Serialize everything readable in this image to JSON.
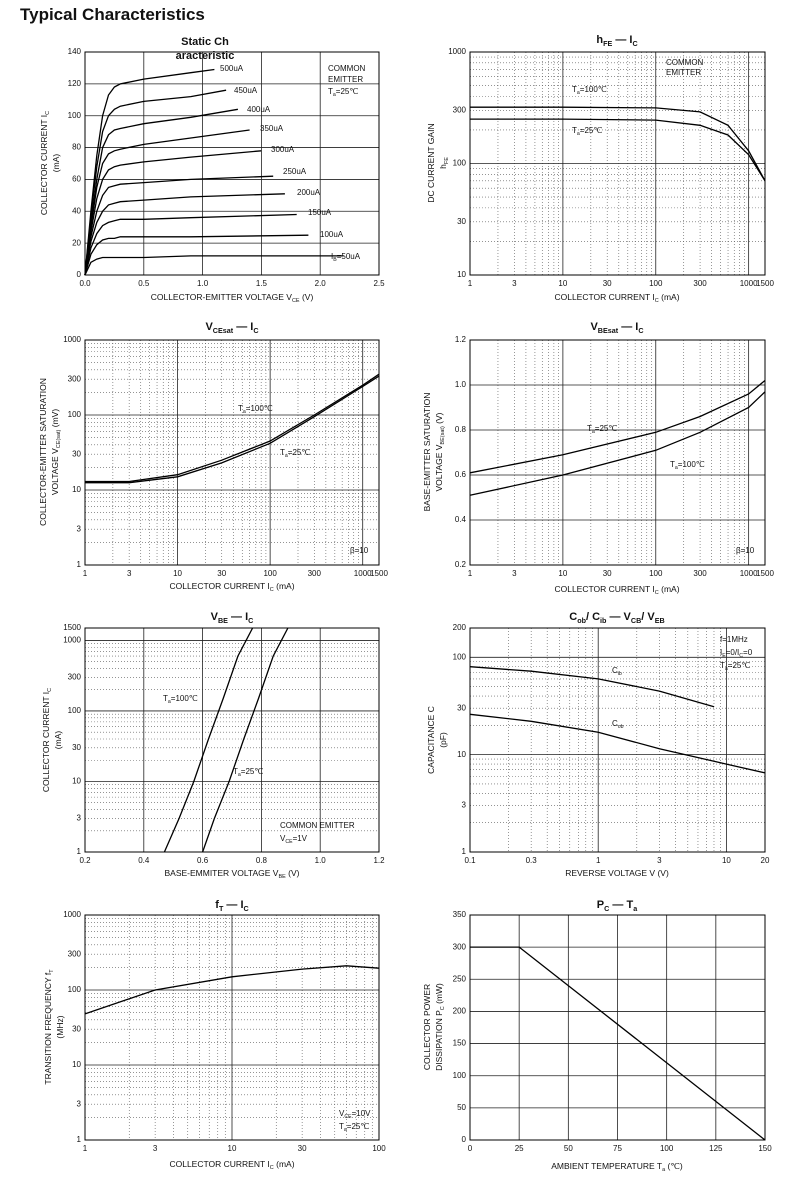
{
  "page_title": "Typical Characteristics",
  "chart_data": [
    {
      "type": "line",
      "title_lines": [
        "Static Ch",
        "aracteristic"
      ],
      "x_label": [
        "COLLECTOR-EMITTER VOLTAGE   V",
        "CE",
        "   (V)"
      ],
      "y_label": [
        [
          "COLLECTOR CURRENT   I",
          "C"
        ],
        [
          "(mA)"
        ]
      ],
      "xlim": [
        0,
        2.5
      ],
      "xticks": [
        {
          "value": 0,
          "label": "0.0"
        },
        0.5,
        {
          "value": 1,
          "label": "1.0"
        },
        1.5,
        {
          "value": 2,
          "label": "2.0"
        },
        2.5
      ],
      "ylim": [
        0,
        140
      ],
      "yticks": [
        0,
        20,
        40,
        60,
        80,
        100,
        120,
        140
      ],
      "grid": true,
      "annotations": [
        [
          "COMMON"
        ],
        [
          "EMITTER"
        ],
        [
          "T",
          "a",
          "=25℃"
        ]
      ],
      "series": [
        {
          "name": [
            "500uA"
          ],
          "color": "#000000",
          "x": [
            0,
            0.05,
            0.1,
            0.15,
            0.2,
            0.25,
            0.3,
            0.5,
            0.9,
            1.1
          ],
          "values": [
            0,
            40,
            75,
            100,
            113,
            118,
            120,
            123,
            127,
            129
          ]
        },
        {
          "name": [
            "450uA"
          ],
          "color": "#000000",
          "x": [
            0,
            0.05,
            0.1,
            0.15,
            0.2,
            0.25,
            0.3,
            0.5,
            0.9,
            1.2
          ],
          "values": [
            0,
            37,
            68,
            90,
            100,
            104,
            106,
            109,
            112,
            116
          ]
        },
        {
          "name": [
            "400uA"
          ],
          "color": "#000000",
          "x": [
            0,
            0.05,
            0.1,
            0.15,
            0.2,
            0.25,
            0.3,
            0.5,
            0.9,
            1.3
          ],
          "values": [
            0,
            33,
            60,
            80,
            88,
            91,
            92,
            95,
            99,
            104
          ]
        },
        {
          "name": [
            "350uA"
          ],
          "color": "#000000",
          "x": [
            0,
            0.05,
            0.1,
            0.15,
            0.2,
            0.25,
            0.3,
            0.5,
            0.9,
            1.4
          ],
          "values": [
            0,
            30,
            55,
            70,
            76,
            78,
            79,
            82,
            86,
            91
          ]
        },
        {
          "name": [
            "300uA"
          ],
          "color": "#000000",
          "x": [
            0,
            0.05,
            0.1,
            0.15,
            0.2,
            0.25,
            0.3,
            0.5,
            0.9,
            1.5
          ],
          "values": [
            0,
            27,
            48,
            60,
            66,
            68,
            69,
            71,
            74,
            78
          ]
        },
        {
          "name": [
            "250uA"
          ],
          "color": "#000000",
          "x": [
            0,
            0.05,
            0.1,
            0.15,
            0.2,
            0.25,
            0.3,
            0.5,
            0.9,
            1.6
          ],
          "values": [
            0,
            24,
            40,
            50,
            55,
            56,
            57,
            58,
            60,
            62
          ]
        },
        {
          "name": [
            "200uA"
          ],
          "color": "#000000",
          "x": [
            0,
            0.05,
            0.1,
            0.15,
            0.2,
            0.25,
            0.3,
            0.5,
            0.9,
            1.7
          ],
          "values": [
            0,
            21,
            33,
            40,
            44,
            45,
            46,
            47,
            49,
            51
          ]
        },
        {
          "name": [
            "150uA"
          ],
          "color": "#000000",
          "x": [
            0,
            0.05,
            0.1,
            0.15,
            0.2,
            0.25,
            0.3,
            0.5,
            0.9,
            1.8
          ],
          "values": [
            0,
            17,
            26,
            31,
            33,
            34,
            35,
            35,
            36,
            38
          ]
        },
        {
          "name": [
            "100uA"
          ],
          "color": "#000000",
          "x": [
            0,
            0.05,
            0.1,
            0.15,
            0.2,
            0.25,
            0.3,
            0.5,
            0.9,
            1.9
          ],
          "values": [
            0,
            13,
            19,
            22,
            23,
            23,
            24,
            24,
            24,
            25
          ]
        },
        {
          "name": [
            "I",
            "B",
            "=50uA"
          ],
          "color": "#000000",
          "x": [
            0,
            0.05,
            0.1,
            0.15,
            0.2,
            0.25,
            0.3,
            0.5,
            0.9,
            2.2
          ],
          "values": [
            0,
            8,
            10,
            11,
            11,
            11,
            11,
            11,
            12,
            12
          ]
        }
      ]
    },
    {
      "type": "line",
      "title": [
        "h",
        "FE",
        "  —  I",
        "C"
      ],
      "x_label": [
        "COLLECTOR CURRENT   I",
        "C",
        "   (mA)"
      ],
      "y_label": [
        [
          "DC CURRENT GAIN"
        ],
        [
          "h",
          "FE"
        ]
      ],
      "xscale": "log",
      "yscale": "log",
      "xlim": [
        1,
        1500
      ],
      "xticks": [
        1,
        3,
        10,
        30,
        100,
        300,
        1000,
        1500
      ],
      "ylim": [
        10,
        1000
      ],
      "yticks": [
        10,
        30,
        100,
        300,
        1000
      ],
      "grid": true,
      "annotations": [
        [
          "COMMON"
        ],
        [
          "EMITTER"
        ]
      ],
      "series": [
        {
          "name": [
            "T",
            "a",
            "=100℃"
          ],
          "color": "#000000",
          "x": [
            1,
            10,
            100,
            300,
            600,
            1000,
            1500
          ],
          "values": [
            320,
            320,
            315,
            290,
            220,
            130,
            70
          ]
        },
        {
          "name": [
            "T",
            "a",
            "=25℃"
          ],
          "color": "#000000",
          "x": [
            1,
            10,
            100,
            300,
            600,
            1000,
            1500
          ],
          "values": [
            250,
            250,
            245,
            220,
            180,
            120,
            70
          ]
        }
      ]
    },
    {
      "type": "line",
      "title": [
        "V",
        "CEsat",
        "  —  I",
        "C"
      ],
      "x_label": [
        "COLLECTOR CURRENT   I",
        "C",
        "   (mA)"
      ],
      "y_label": [
        [
          "COLLECTOR-EMITTER SATURATION"
        ],
        [
          "VOLTAGE   V",
          "CE(sat)",
          "   (mV)"
        ]
      ],
      "xscale": "log",
      "yscale": "log",
      "xlim": [
        1,
        1500
      ],
      "xticks": [
        1,
        3,
        10,
        30,
        100,
        300,
        1000,
        1500
      ],
      "ylim": [
        1,
        1000
      ],
      "yticks": [
        1,
        3,
        10,
        30,
        100,
        300,
        1000
      ],
      "grid": true,
      "annotations": [
        [
          "β=10"
        ]
      ],
      "series": [
        {
          "name": [
            "T",
            "a",
            "=100℃"
          ],
          "color": "#000000",
          "x": [
            1,
            3,
            10,
            30,
            100,
            300,
            1000,
            1500
          ],
          "values": [
            13,
            13,
            16,
            25,
            45,
            100,
            250,
            350
          ]
        },
        {
          "name": [
            "T",
            "a",
            "=25℃"
          ],
          "color": "#000000",
          "x": [
            1,
            3,
            10,
            30,
            100,
            300,
            1000,
            1500
          ],
          "values": [
            12.5,
            12.5,
            15,
            23,
            42,
            95,
            240,
            330
          ]
        }
      ]
    },
    {
      "type": "line",
      "title": [
        "V",
        "BEsat",
        "  —  I",
        "C"
      ],
      "x_label": [
        "COLLECTOR CURRENT   I",
        "C",
        "   (mA)"
      ],
      "y_label": [
        [
          "BASE-EMITTER SATURATION"
        ],
        [
          "VOLTAGE   V",
          "BE(sat)",
          "   (V)"
        ]
      ],
      "xscale": "log",
      "xlim": [
        1,
        1500
      ],
      "xticks": [
        1,
        3,
        10,
        30,
        100,
        300,
        1000,
        1500
      ],
      "ylim": [
        0.2,
        1.2
      ],
      "yticks": [
        0.2,
        0.4,
        0.6,
        0.8,
        {
          "value": 1,
          "label": "1.0"
        },
        1.2
      ],
      "grid": true,
      "annotations": [
        [
          "β=10"
        ]
      ],
      "series": [
        {
          "name": [
            "T",
            "a",
            "=25℃"
          ],
          "color": "#000000",
          "x": [
            1,
            10,
            100,
            300,
            1000,
            1500
          ],
          "values": [
            0.61,
            0.69,
            0.79,
            0.86,
            0.96,
            1.02
          ]
        },
        {
          "name": [
            "T",
            "a",
            "=100℃"
          ],
          "color": "#000000",
          "x": [
            1,
            10,
            100,
            300,
            1000,
            1500
          ],
          "values": [
            0.51,
            0.6,
            0.71,
            0.79,
            0.9,
            0.97
          ]
        }
      ]
    },
    {
      "type": "line",
      "title": [
        "V",
        "BE",
        "  —  I",
        "C"
      ],
      "x_label": [
        "BASE-EMMITER VOLTAGE   V",
        "BE",
        "   (V)"
      ],
      "y_label": [
        [
          "COLLECTOR CURRENT   I",
          "C"
        ],
        [
          "(mA)"
        ]
      ],
      "yscale": "log",
      "xlim": [
        0.2,
        1.2
      ],
      "xticks": [
        0.2,
        0.4,
        0.6,
        0.8,
        {
          "value": 1,
          "label": "1.0"
        },
        1.2
      ],
      "ylim": [
        1,
        1500
      ],
      "yticks": [
        1,
        3,
        10,
        30,
        100,
        300,
        1000,
        1500
      ],
      "grid": true,
      "annotations": [
        [
          "COMMON EMITTER"
        ],
        [
          "V",
          "CE",
          "=1V"
        ]
      ],
      "series": [
        {
          "name": [
            "T",
            "a",
            "=100℃"
          ],
          "color": "#000000",
          "x": [
            0.47,
            0.52,
            0.57,
            0.62,
            0.67,
            0.72,
            0.77
          ],
          "values": [
            1,
            3,
            10,
            40,
            150,
            600,
            1500
          ]
        },
        {
          "name": [
            "T",
            "a",
            "=25℃"
          ],
          "color": "#000000",
          "x": [
            0.6,
            0.64,
            0.69,
            0.74,
            0.79,
            0.84,
            0.89
          ],
          "values": [
            1,
            3,
            10,
            40,
            150,
            600,
            1500
          ]
        }
      ]
    },
    {
      "type": "line",
      "title": [
        "C",
        "ob",
        "/ C",
        "ib",
        "  —  V",
        "CB",
        "/ V",
        "EB"
      ],
      "x_label": [
        "REVERSE VOLTAGE   V   (V)"
      ],
      "y_label": [
        [
          "CAPACITANCE   C"
        ],
        [
          "(pF)"
        ]
      ],
      "xscale": "log",
      "yscale": "log",
      "xlim": [
        0.1,
        20
      ],
      "xticks": [
        0.1,
        0.3,
        1,
        3,
        10,
        20
      ],
      "ylim": [
        1,
        200
      ],
      "yticks": [
        1,
        3,
        10,
        30,
        100,
        200
      ],
      "grid": true,
      "annotations": [
        [
          "f=1MHz"
        ],
        [
          "I",
          "E",
          "=0/I",
          "C",
          "=0"
        ],
        [
          "T",
          "a",
          "=25℃"
        ]
      ],
      "series": [
        {
          "name": [
            "C",
            "ib"
          ],
          "color": "#000000",
          "x": [
            0.1,
            0.3,
            1,
            3,
            8
          ],
          "values": [
            80,
            72,
            60,
            45,
            31
          ]
        },
        {
          "name": [
            "C",
            "ob"
          ],
          "color": "#000000",
          "x": [
            0.1,
            0.3,
            1,
            3,
            10,
            20
          ],
          "values": [
            26,
            22,
            17,
            11.5,
            8,
            6.5
          ]
        }
      ]
    },
    {
      "type": "line",
      "title": [
        "f",
        "T",
        "  —  I",
        "C"
      ],
      "x_label": [
        "COLLECTOR CURRENT  I",
        "C",
        "   (mA)"
      ],
      "y_label": [
        [
          "TRANSITION FREQUENCY   f",
          "T"
        ],
        [
          "(MHz)"
        ]
      ],
      "xscale": "log",
      "yscale": "log",
      "xlim": [
        1,
        100
      ],
      "xticks": [
        1,
        3,
        10,
        30,
        100
      ],
      "ylim": [
        1,
        1000
      ],
      "yticks": [
        1,
        3,
        10,
        30,
        100,
        300,
        1000
      ],
      "grid": true,
      "annotations": [
        [
          "V",
          "CE",
          "=10V"
        ],
        [
          "T",
          "a",
          "=25℃"
        ]
      ],
      "series": [
        {
          "color": "#000000",
          "x": [
            1,
            3,
            10,
            30,
            60,
            100
          ],
          "values": [
            48,
            100,
            150,
            190,
            210,
            195
          ]
        }
      ]
    },
    {
      "type": "line",
      "title": [
        "P",
        "C",
        "  —  T",
        "a"
      ],
      "x_label": [
        "AMBIENT TEMPERATURE   T",
        "a",
        "   (℃)"
      ],
      "y_label": [
        [
          "COLLECTOR POWER"
        ],
        [
          "DISSIPATION   P",
          "C",
          "   (mW)"
        ]
      ],
      "xlim": [
        0,
        150
      ],
      "xticks": [
        0,
        25,
        50,
        75,
        100,
        125,
        150
      ],
      "ylim": [
        0,
        350
      ],
      "yticks": [
        0,
        50,
        100,
        150,
        200,
        250,
        300,
        350
      ],
      "grid": true,
      "series": [
        {
          "color": "#000000",
          "x": [
            0,
            25,
            150
          ],
          "values": [
            300,
            300,
            0
          ]
        }
      ]
    }
  ]
}
